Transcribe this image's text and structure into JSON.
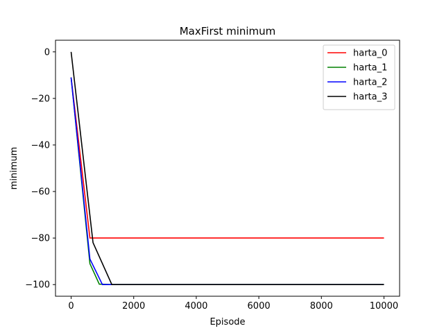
{
  "chart_data": {
    "type": "line",
    "title": "MaxFirst minimum",
    "xlabel": "Episode",
    "ylabel": "minimum",
    "xlim": [
      -500,
      10500
    ],
    "ylim": [
      -105,
      5
    ],
    "xticks": [
      0,
      2000,
      4000,
      6000,
      8000,
      10000
    ],
    "yticks": [
      0,
      -20,
      -40,
      -60,
      -80,
      -100
    ],
    "xtick_labels": [
      "0",
      "2000",
      "4000",
      "6000",
      "8000",
      "10000"
    ],
    "ytick_labels": [
      "0",
      "−20",
      "−40",
      "−60",
      "−80",
      "−100"
    ],
    "grid": false,
    "legend_position": "top-right",
    "series": [
      {
        "name": "harta_0",
        "color": "#ff0000",
        "x": [
          0,
          600,
          10000
        ],
        "y": [
          -11,
          -80,
          -80
        ]
      },
      {
        "name": "harta_1",
        "color": "#008000",
        "x": [
          0,
          600,
          900,
          1300,
          10000
        ],
        "y": [
          -11,
          -91,
          -99.8,
          -100,
          -100
        ]
      },
      {
        "name": "harta_2",
        "color": "#0000ff",
        "x": [
          0,
          600,
          1000,
          10000
        ],
        "y": [
          -11,
          -89,
          -100,
          -100
        ]
      },
      {
        "name": "harta_3",
        "color": "#000000",
        "x": [
          0,
          700,
          1300,
          10000
        ],
        "y": [
          0,
          -82,
          -100,
          -100
        ]
      }
    ]
  }
}
